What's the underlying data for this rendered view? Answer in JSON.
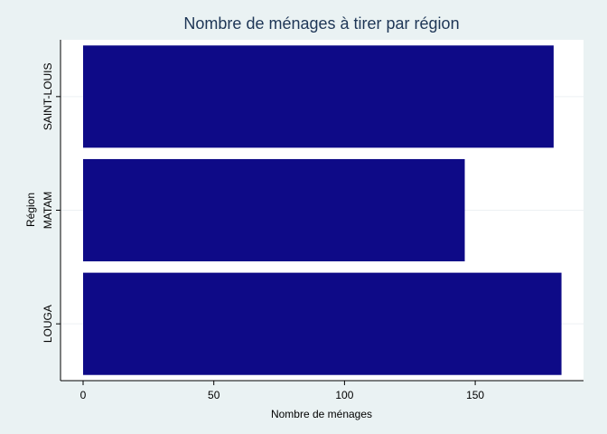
{
  "chart_data": {
    "type": "bar",
    "orientation": "horizontal",
    "title": "Nombre de ménages à tirer par région",
    "xlabel": "Nombre de ménages",
    "ylabel": "Région",
    "categories": [
      "SAINT-LOUIS",
      "MATAM",
      "LOUGA"
    ],
    "values": [
      180,
      146,
      183
    ],
    "xlim": [
      0,
      190
    ],
    "xticks": [
      0,
      50,
      100,
      150
    ],
    "grid": true,
    "legend": "none",
    "colors": {
      "bar": "#0e0a87",
      "plot_background": "#ffffff",
      "outer_background": "#eaf2f3",
      "title": "#1e3656",
      "grid": "#edf1f3"
    }
  }
}
